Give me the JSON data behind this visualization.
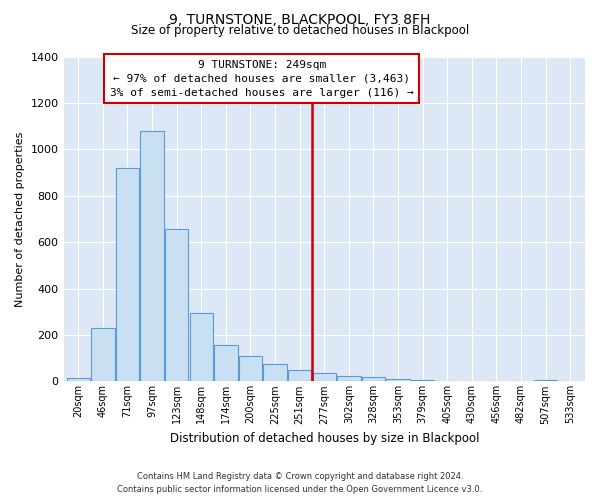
{
  "title": "9, TURNSTONE, BLACKPOOL, FY3 8FH",
  "subtitle": "Size of property relative to detached houses in Blackpool",
  "xlabel": "Distribution of detached houses by size in Blackpool",
  "ylabel": "Number of detached properties",
  "bar_labels": [
    "20sqm",
    "46sqm",
    "71sqm",
    "97sqm",
    "123sqm",
    "148sqm",
    "174sqm",
    "200sqm",
    "225sqm",
    "251sqm",
    "277sqm",
    "302sqm",
    "328sqm",
    "353sqm",
    "379sqm",
    "405sqm",
    "430sqm",
    "456sqm",
    "482sqm",
    "507sqm",
    "533sqm"
  ],
  "bar_values": [
    15,
    228,
    918,
    1080,
    655,
    293,
    158,
    108,
    73,
    48,
    38,
    25,
    20,
    10,
    5,
    0,
    0,
    0,
    0,
    8,
    0
  ],
  "bar_color": "#c9dff2",
  "bar_edge_color": "#5b9bd5",
  "plot_bg_color": "#dce8f5",
  "ylim": [
    0,
    1400
  ],
  "yticks": [
    0,
    200,
    400,
    600,
    800,
    1000,
    1200,
    1400
  ],
  "vline_x": 9.5,
  "marker_line_color": "#cc0000",
  "annotation_line1": "9 TURNSTONE: 249sqm",
  "annotation_line2": "← 97% of detached houses are smaller (3,463)",
  "annotation_line3": "3% of semi-detached houses are larger (116) →",
  "footer_line1": "Contains HM Land Registry data © Crown copyright and database right 2024.",
  "footer_line2": "Contains public sector information licensed under the Open Government Licence v3.0.",
  "background_color": "#ffffff"
}
